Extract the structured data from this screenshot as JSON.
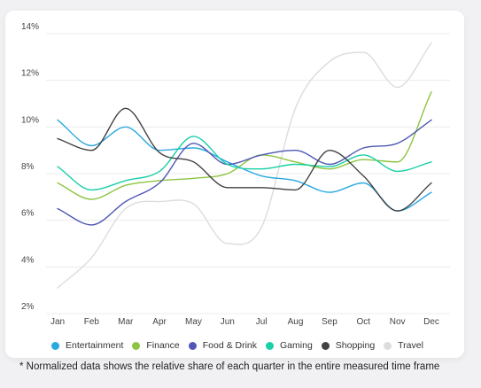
{
  "chart_data": {
    "type": "line",
    "x": [
      "Jan",
      "Feb",
      "Mar",
      "Apr",
      "May",
      "Jun",
      "Jul",
      "Aug",
      "Sep",
      "Oct",
      "Nov",
      "Dec"
    ],
    "yticks": [
      "2%",
      "4%",
      "6%",
      "8%",
      "10%",
      "12%",
      "14%"
    ],
    "ylim": [
      2,
      14
    ],
    "grid": true,
    "legend_position": "bottom",
    "series": [
      {
        "name": "Entertainment",
        "color": "#29a9e0",
        "values": [
          10.3,
          9.2,
          10.0,
          9.0,
          9.1,
          8.5,
          7.9,
          7.7,
          7.2,
          7.6,
          6.4,
          7.2
        ]
      },
      {
        "name": "Finance",
        "color": "#8dc540",
        "values": [
          7.6,
          6.9,
          7.5,
          7.7,
          7.8,
          8.0,
          8.8,
          8.5,
          8.2,
          8.6,
          8.5,
          11.5
        ]
      },
      {
        "name": "Food & Drink",
        "color": "#5057b6",
        "values": [
          6.5,
          5.8,
          6.8,
          7.6,
          9.3,
          8.4,
          8.8,
          9.0,
          8.4,
          9.1,
          9.3,
          10.3
        ]
      },
      {
        "name": "Gaming",
        "color": "#19cfa6",
        "values": [
          8.3,
          7.3,
          7.7,
          8.1,
          9.6,
          8.4,
          8.2,
          8.4,
          8.3,
          8.8,
          8.1,
          8.5
        ]
      },
      {
        "name": "Shopping",
        "color": "#424242",
        "values": [
          9.5,
          9.0,
          10.8,
          8.9,
          8.5,
          7.4,
          7.4,
          7.3,
          9.0,
          7.9,
          6.4,
          7.6
        ]
      },
      {
        "name": "Travel",
        "color": "#dcdcdc",
        "values": [
          3.1,
          4.4,
          6.5,
          6.8,
          6.7,
          5.0,
          5.7,
          10.8,
          12.8,
          13.2,
          11.7,
          13.6
        ]
      }
    ]
  },
  "footnote": "* Normalized data shows the relative share of each quarter in the entire measured time frame"
}
